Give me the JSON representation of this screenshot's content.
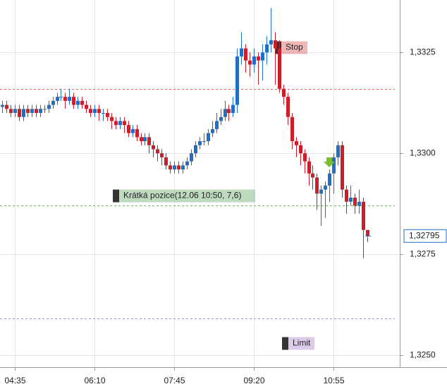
{
  "chart_data": {
    "type": "candlestick",
    "categories": [
      null,
      null,
      null,
      "04:35",
      null,
      null,
      null,
      null,
      null,
      null,
      null,
      null,
      null,
      null,
      null,
      null,
      null,
      null,
      null,
      null,
      null,
      null,
      "06:10",
      null,
      null,
      null,
      null,
      null,
      null,
      null,
      null,
      null,
      null,
      null,
      null,
      null,
      null,
      null,
      null,
      null,
      null,
      "07:45",
      null,
      null,
      null,
      null,
      null,
      null,
      null,
      null,
      null,
      null,
      null,
      null,
      null,
      null,
      null,
      null,
      null,
      null,
      "09:20",
      null,
      null,
      null,
      null,
      null,
      null,
      null,
      null,
      null,
      null,
      null,
      null,
      null,
      null,
      null,
      null,
      null,
      null,
      "10:55",
      null,
      null,
      null,
      null,
      null,
      null,
      null,
      null
    ],
    "open": [
      1.33115,
      1.3312,
      1.3311,
      1.331,
      1.3311,
      1.3309,
      1.3311,
      1.331,
      1.3311,
      1.331,
      1.3311,
      1.3311,
      1.3312,
      1.3313,
      1.3314,
      1.3314,
      1.3313,
      1.3314,
      1.3312,
      1.3313,
      1.3312,
      1.3311,
      1.331,
      1.3311,
      1.331,
      1.331,
      1.3309,
      1.3308,
      1.3307,
      1.3308,
      1.3307,
      1.3305,
      1.3306,
      1.3304,
      1.3303,
      1.3304,
      1.3302,
      1.3301,
      1.33,
      1.3299,
      1.3297,
      1.3296,
      1.3297,
      1.3296,
      1.3297,
      1.3298,
      1.33,
      1.3302,
      1.3303,
      1.3303,
      1.3305,
      1.3306,
      1.3308,
      1.3309,
      1.3311,
      1.331,
      1.3312,
      1.3324,
      1.3326,
      1.3323,
      1.3322,
      1.3324,
      1.3323,
      1.3325,
      1.3327,
      1.3328,
      1.3326,
      1.3316,
      1.3314,
      1.3309,
      1.3303,
      1.3302,
      1.33,
      1.3298,
      1.3295,
      1.3294,
      1.329,
      1.3291,
      1.3292,
      1.3295,
      1.3299,
      1.3302,
      1.3291,
      1.3288,
      1.3289,
      1.3287,
      1.3288,
      1.3281
    ],
    "high": [
      1.3313,
      1.3313,
      1.3312,
      1.3312,
      1.3312,
      1.3312,
      1.3312,
      1.3312,
      1.3312,
      1.3312,
      1.3312,
      1.3313,
      1.3314,
      1.3315,
      1.3316,
      1.3315,
      1.3316,
      1.3315,
      1.3314,
      1.3314,
      1.3313,
      1.3312,
      1.3312,
      1.3312,
      1.3311,
      1.3311,
      1.331,
      1.3309,
      1.3309,
      1.3309,
      1.3308,
      1.3307,
      1.3307,
      1.3305,
      1.3305,
      1.3305,
      1.3303,
      1.3302,
      1.3301,
      1.33,
      1.3298,
      1.3298,
      1.3298,
      1.3298,
      1.3299,
      1.3301,
      1.3303,
      1.3304,
      1.3305,
      1.3306,
      1.3308,
      1.331,
      1.3311,
      1.3313,
      1.3312,
      1.3314,
      1.3326,
      1.333,
      1.3327,
      1.3325,
      1.3326,
      1.3325,
      1.3327,
      1.3329,
      1.3336,
      1.333,
      1.3328,
      1.3317,
      1.3315,
      1.331,
      1.3304,
      1.3303,
      1.3301,
      1.3299,
      1.3297,
      1.3295,
      1.3292,
      1.3293,
      1.3296,
      1.33,
      1.3303,
      1.3303,
      1.3292,
      1.3292,
      1.329,
      1.3291,
      1.3289,
      1.3281
    ],
    "low": [
      1.331,
      1.331,
      1.3309,
      1.3309,
      1.3308,
      1.3308,
      1.3309,
      1.3309,
      1.3309,
      1.3309,
      1.331,
      1.331,
      1.3311,
      1.3312,
      1.3313,
      1.3311,
      1.3312,
      1.3311,
      1.3311,
      1.3311,
      1.331,
      1.3309,
      1.3309,
      1.3308,
      1.3308,
      1.3308,
      1.3306,
      1.3306,
      1.3306,
      1.3305,
      1.3304,
      1.3304,
      1.3303,
      1.3302,
      1.3302,
      1.33,
      1.3299,
      1.3298,
      1.3297,
      1.3296,
      1.3295,
      1.3295,
      1.3295,
      1.3295,
      1.3296,
      1.3297,
      1.3299,
      1.3301,
      1.3302,
      1.3302,
      1.3304,
      1.3305,
      1.3307,
      1.3308,
      1.3308,
      1.3309,
      1.331,
      1.3322,
      1.332,
      1.3319,
      1.332,
      1.3317,
      1.3318,
      1.3322,
      1.3325,
      1.3317,
      1.3315,
      1.3312,
      1.3307,
      1.3301,
      1.3299,
      1.3297,
      1.3295,
      1.3292,
      1.3291,
      1.3286,
      1.3282,
      1.3284,
      1.3288,
      1.329,
      1.3297,
      1.3289,
      1.3285,
      1.3287,
      1.3285,
      1.3285,
      1.3274,
      1.3278
    ],
    "close": [
      1.3312,
      1.3311,
      1.331,
      1.3311,
      1.3309,
      1.3311,
      1.331,
      1.3311,
      1.331,
      1.3311,
      1.3311,
      1.3312,
      1.3313,
      1.3314,
      1.3314,
      1.3313,
      1.3314,
      1.3312,
      1.3313,
      1.3312,
      1.3311,
      1.331,
      1.3311,
      1.331,
      1.331,
      1.3309,
      1.3308,
      1.3307,
      1.3308,
      1.3307,
      1.3305,
      1.3306,
      1.3304,
      1.3303,
      1.3304,
      1.3302,
      1.3301,
      1.33,
      1.3299,
      1.3297,
      1.3296,
      1.3297,
      1.3296,
      1.3297,
      1.3298,
      1.33,
      1.3302,
      1.3303,
      1.3303,
      1.3305,
      1.3306,
      1.3308,
      1.3309,
      1.3311,
      1.331,
      1.3312,
      1.3324,
      1.3326,
      1.3323,
      1.3322,
      1.3324,
      1.3323,
      1.3325,
      1.3327,
      1.3328,
      1.3326,
      1.3316,
      1.3314,
      1.3309,
      1.3303,
      1.3302,
      1.33,
      1.3298,
      1.3295,
      1.3294,
      1.329,
      1.3291,
      1.3292,
      1.3295,
      1.3299,
      1.3302,
      1.3291,
      1.3288,
      1.3289,
      1.3287,
      1.3288,
      1.3281,
      1.32795
    ],
    "up_color": "#1f6fc6",
    "down_color": "#c9202c",
    "ylim": [
      1.3247,
      1.3338
    ],
    "yticks": [
      {
        "value": 1.325,
        "label": "1,3250"
      },
      {
        "value": 1.3275,
        "label": "1,3275"
      },
      {
        "value": 1.33,
        "label": "1,3300"
      },
      {
        "value": 1.3325,
        "label": "1,3325"
      }
    ],
    "grid": true,
    "levels": [
      {
        "name": "Stop",
        "value": 1.3316,
        "color": "#e06060"
      },
      {
        "name": "Krátká pozice(12.06 10:50, 7,6)",
        "value": 1.3287,
        "color": "#70b070"
      },
      {
        "name": "Limit",
        "value": 1.3259,
        "color": "#b090d0"
      }
    ],
    "last_price": {
      "value": 1.32795,
      "label": "1,32795"
    }
  }
}
